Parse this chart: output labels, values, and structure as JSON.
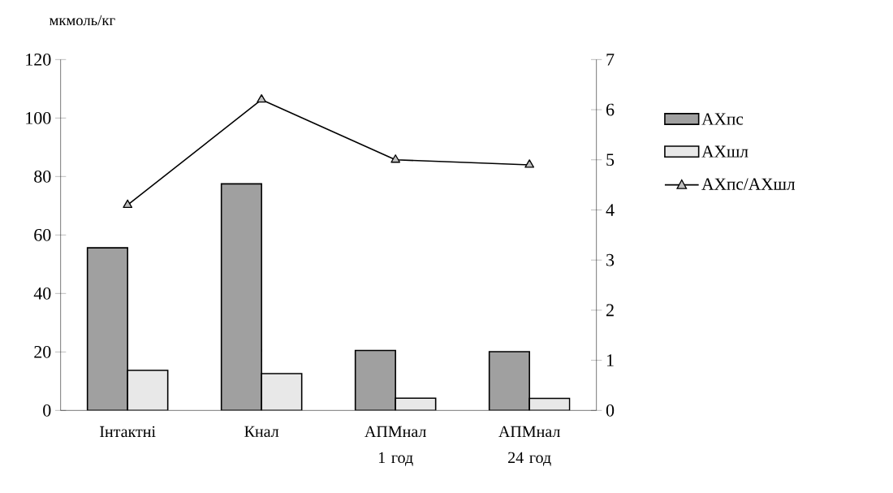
{
  "chart_data": {
    "type": "bar",
    "ylabel": "мкмоль/кг",
    "categories": [
      "Інтактні",
      "Кнал",
      "АПМнал 1 год",
      "АПМнал 24 год"
    ],
    "series": [
      {
        "name": "АХпс",
        "color": "#a0a0a0",
        "values": [
          55.6,
          77.5,
          20.5,
          20.1
        ]
      },
      {
        "name": "АХшл",
        "color": "#e8e8e8",
        "values": [
          13.7,
          12.6,
          4.2,
          4.1
        ]
      },
      {
        "name": "АХпс/АХшл",
        "type": "line",
        "axis": "y2",
        "color": "#000000",
        "marker": "triangle",
        "values": [
          4.1,
          6.2,
          5.0,
          4.9
        ]
      }
    ],
    "ylim": [
      0,
      120
    ],
    "yticks": [
      0,
      20,
      40,
      60,
      80,
      100,
      120
    ],
    "y2lim": [
      0,
      7
    ],
    "y2ticks": [
      0,
      1,
      2,
      3,
      4,
      5,
      6,
      7
    ],
    "legend": "right",
    "grid": false
  }
}
